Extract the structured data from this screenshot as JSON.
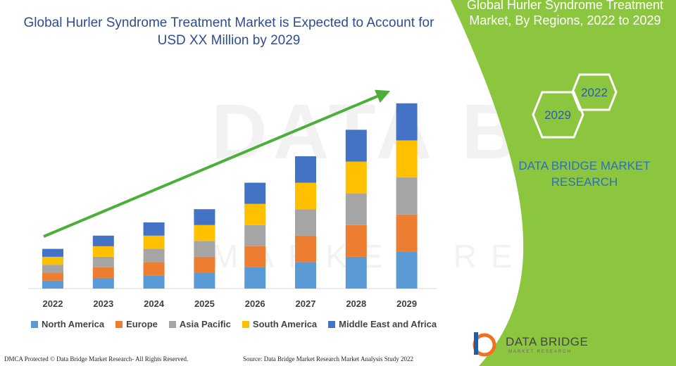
{
  "header": {
    "title": "Global Hurler Syndrome Treatment Market is Expected to Account for USD XX Million by 2029"
  },
  "side_panel": {
    "title": "Global Hurler Syndrome Treatment Market, By Regions, 2022 to 2029",
    "hex_labels": [
      "2022",
      "2029"
    ],
    "brand_text": "DATA BRIDGE MARKET RESEARCH",
    "background_color": "#8cc63f"
  },
  "logo": {
    "name_line1": "DATA BRIDGE",
    "name_line2": "MARKET RESEARCH"
  },
  "watermark": {
    "line1": "DATA BRIDGE",
    "line2": "MARKET RESEARCH"
  },
  "footer": {
    "left": "DMCA Protected © Data Bridge Market Research- All Rights Reserved.",
    "right": "Source: Data Bridge Market Research Market Analysis Study 2022"
  },
  "chart_data": {
    "type": "bar",
    "stacked": true,
    "categories": [
      "2022",
      "2023",
      "2024",
      "2025",
      "2026",
      "2027",
      "2028",
      "2029"
    ],
    "series": [
      {
        "name": "North America",
        "color": "#5b9bd5",
        "values": [
          12,
          16,
          20,
          24,
          32,
          40,
          48,
          56
        ]
      },
      {
        "name": "Europe",
        "color": "#ed7d31",
        "values": [
          12,
          16,
          20,
          24,
          32,
          40,
          48,
          56
        ]
      },
      {
        "name": "Asia Pacific",
        "color": "#a5a5a5",
        "values": [
          12,
          16,
          20,
          24,
          32,
          40,
          48,
          56
        ]
      },
      {
        "name": "South America",
        "color": "#ffc000",
        "values": [
          12,
          16,
          20,
          24,
          32,
          40,
          48,
          56
        ]
      },
      {
        "name": "Middle East and Africa",
        "color": "#4472c4",
        "values": [
          12,
          16,
          20,
          24,
          32,
          40,
          48,
          56
        ]
      }
    ],
    "trend_arrow": true,
    "trend_color": "#4caf3a",
    "ylim": [
      0,
      300
    ],
    "grid": false,
    "legend_position": "bottom"
  }
}
